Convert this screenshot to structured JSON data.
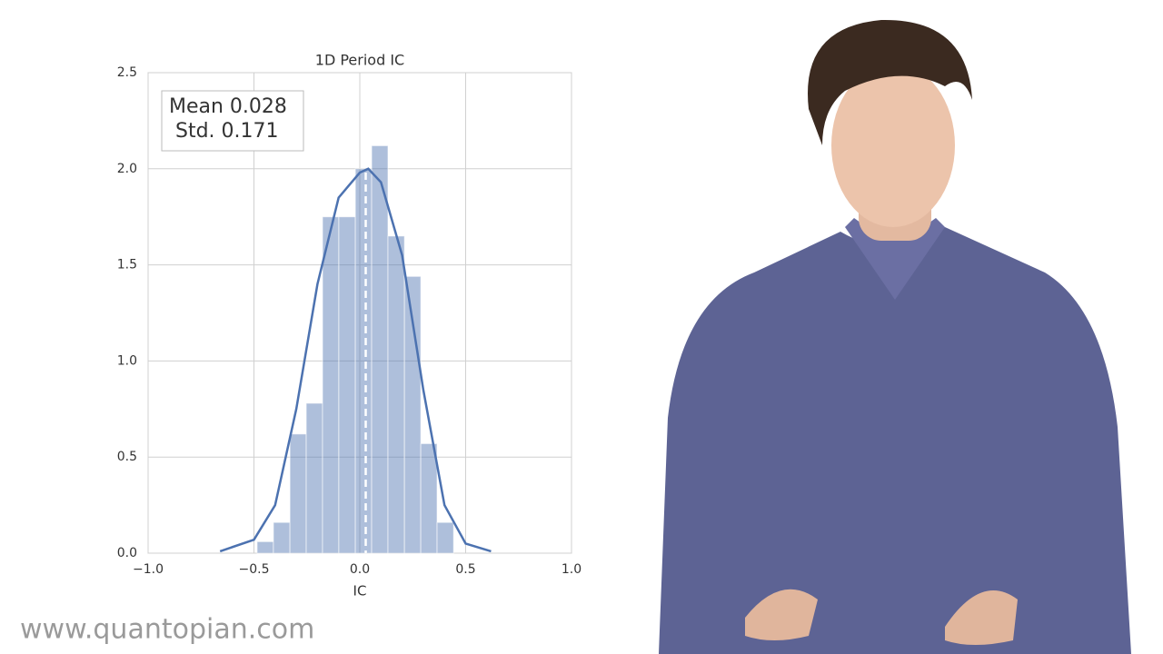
{
  "chart_data": {
    "type": "histogram",
    "title": "1D Period IC",
    "x_label": "IC",
    "bins": [
      -0.485,
      -0.408,
      -0.33,
      -0.253,
      -0.176,
      -0.099,
      -0.021,
      0.056,
      0.133,
      0.211,
      0.288,
      0.365,
      0.443
    ],
    "values": [
      0.06,
      0.16,
      0.62,
      0.78,
      1.75,
      1.75,
      2.0,
      2.12,
      1.65,
      1.44,
      0.57,
      0.16
    ],
    "color": "#4c72b0",
    "kde": {
      "x": [
        -0.66,
        -0.5,
        -0.4,
        -0.3,
        -0.2,
        -0.1,
        0.0,
        0.04,
        0.1,
        0.2,
        0.3,
        0.4,
        0.5,
        0.62
      ],
      "values": [
        0.01,
        0.07,
        0.25,
        0.75,
        1.4,
        1.85,
        1.98,
        2.0,
        1.93,
        1.55,
        0.85,
        0.25,
        0.05,
        0.01
      ]
    },
    "mean": 0.028,
    "annotations": [
      "Mean 0.028",
      "Std. 0.171"
    ],
    "xlim": [
      -1.0,
      1.0
    ],
    "xticks": [
      {
        "value": -1.0,
        "label": "−1.0"
      },
      {
        "value": -0.5,
        "label": "−0.5"
      },
      {
        "value": 0.0,
        "label": "0.0"
      },
      {
        "value": 0.5,
        "label": "0.5"
      },
      {
        "value": 1.0,
        "label": "1.0"
      }
    ],
    "ylim": [
      0,
      2.5
    ],
    "yticks": [
      {
        "value": 0,
        "label": "0.0"
      },
      0.5,
      {
        "value": 1,
        "label": "1.0"
      },
      1.5,
      {
        "value": 2,
        "label": "2.0"
      },
      2.5
    ],
    "grid": true
  },
  "watermark": "www.quantopian.com"
}
